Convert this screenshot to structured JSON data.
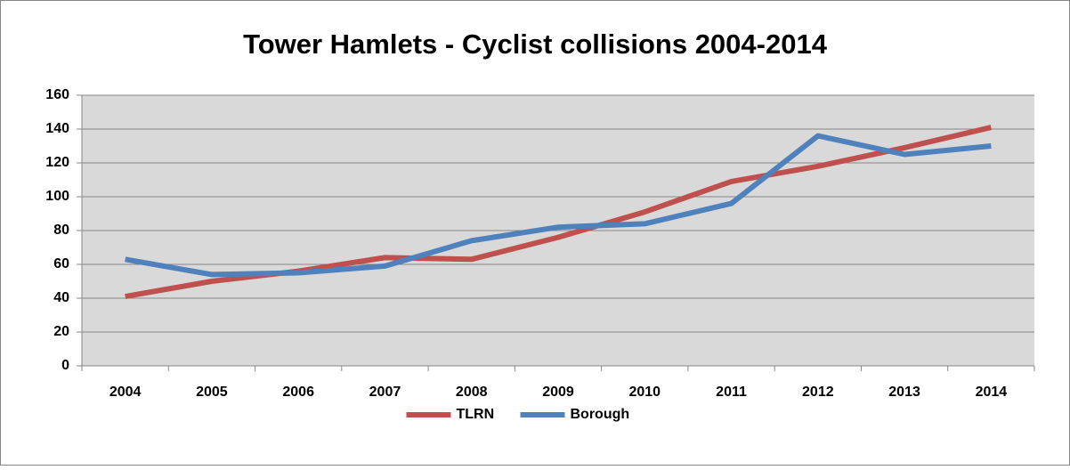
{
  "chart_data": {
    "type": "line",
    "title": "Tower Hamlets - Cyclist collisions 2004-2014",
    "categories": [
      "2004",
      "2005",
      "2006",
      "2007",
      "2008",
      "2009",
      "2010",
      "2011",
      "2012",
      "2013",
      "2014"
    ],
    "series": [
      {
        "name": "TLRN",
        "color": "#c0504d",
        "values": [
          41,
          50,
          56,
          64,
          63,
          76,
          91,
          109,
          118,
          129,
          141
        ]
      },
      {
        "name": "Borough",
        "color": "#4f81bd",
        "values": [
          63,
          54,
          55,
          59,
          74,
          82,
          84,
          96,
          136,
          125,
          130
        ]
      }
    ],
    "ylim": [
      0,
      160
    ],
    "yticks": [
      0,
      20,
      40,
      60,
      80,
      100,
      120,
      140,
      160
    ],
    "grid": true,
    "legend": "bottom"
  }
}
